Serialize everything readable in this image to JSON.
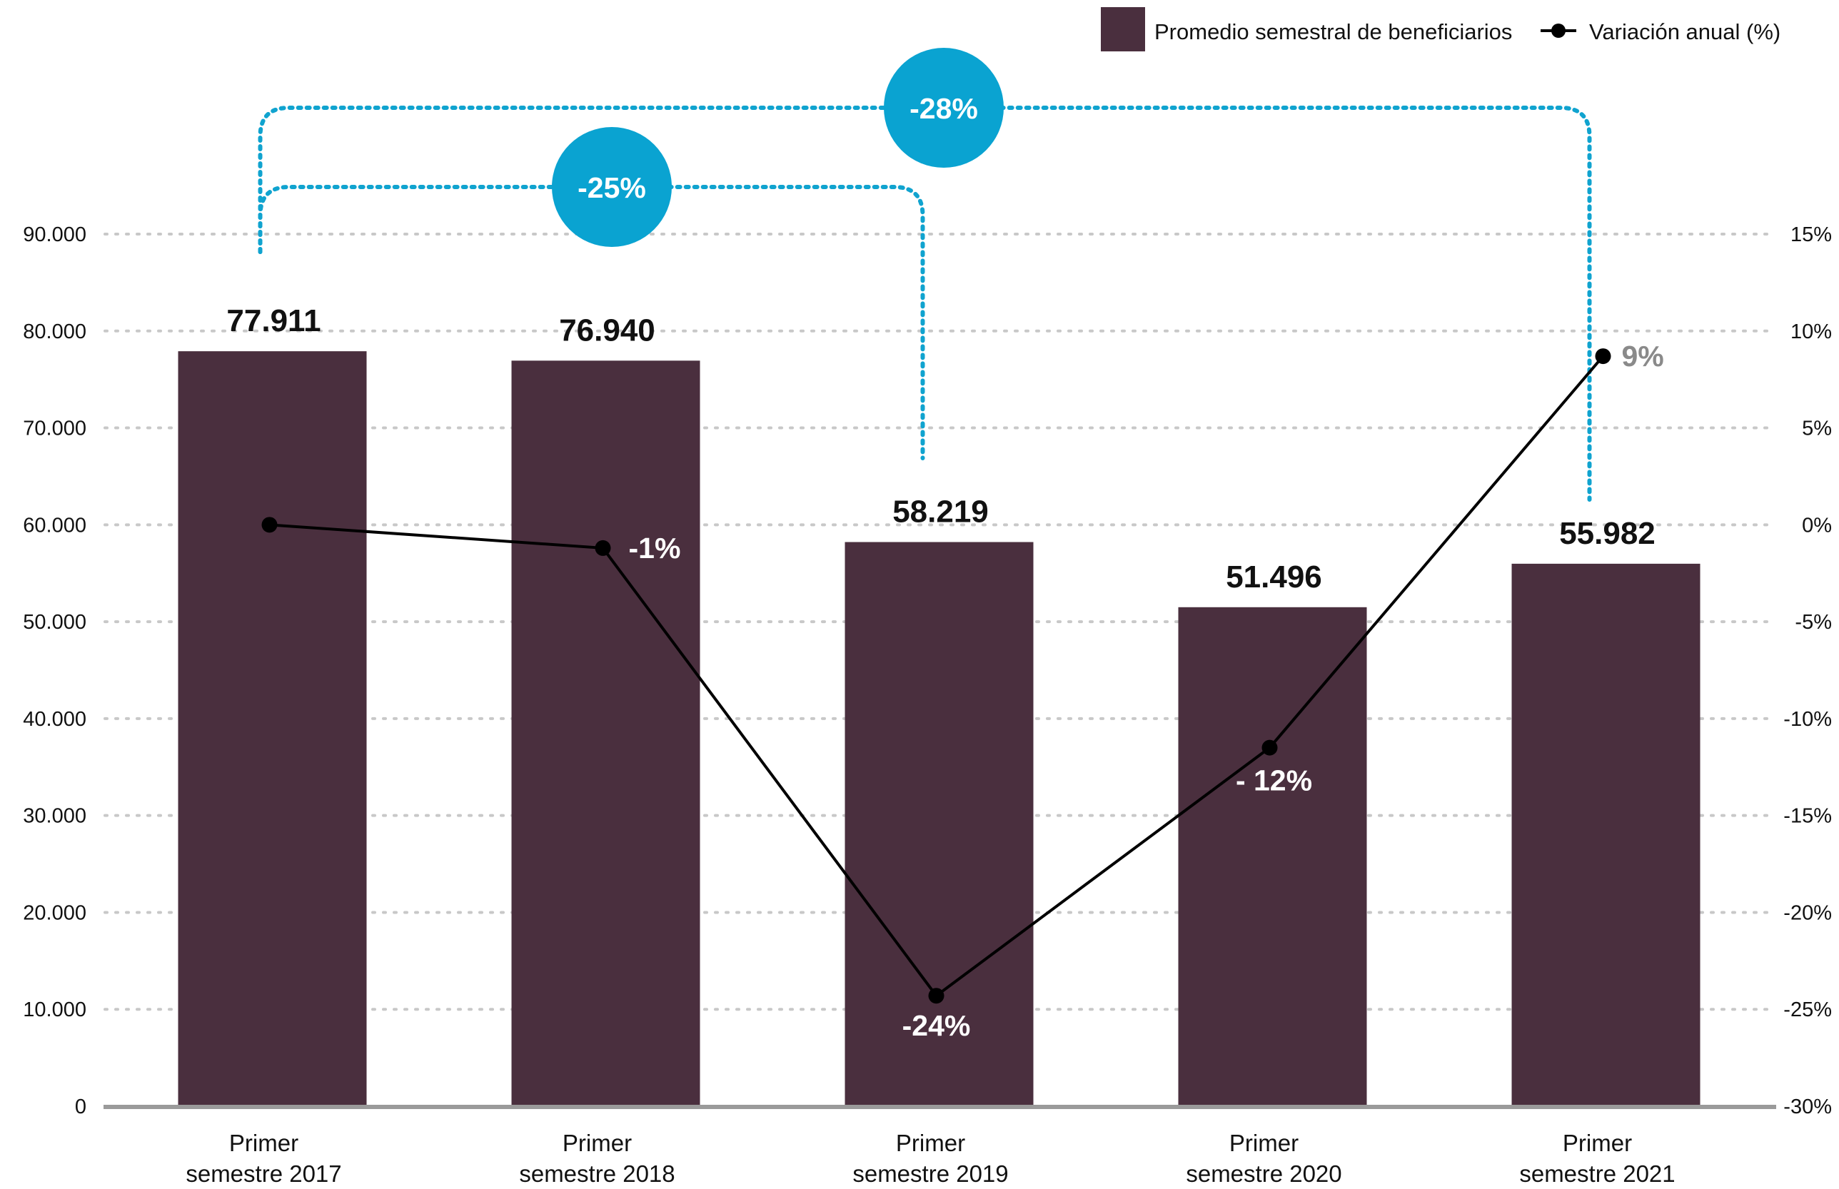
{
  "chart_data": {
    "type": "bar",
    "categories": [
      [
        "Primer",
        "semestre 2017"
      ],
      [
        "Primer",
        "semestre 2018"
      ],
      [
        "Primer",
        "semestre 2019"
      ],
      [
        "Primer",
        "semestre 2020"
      ],
      [
        "Primer",
        "semestre 2021"
      ]
    ],
    "series": [
      {
        "name": "Promedio semestral de beneficiarios",
        "type": "bar",
        "axis": "left",
        "color": "#4a2f3e",
        "values": [
          77911,
          76940,
          58219,
          51496,
          55982
        ],
        "labels": [
          "77.911",
          "76.940",
          "58.219",
          "51.496",
          "55.982"
        ]
      },
      {
        "name": "Variación anual (%)",
        "type": "line",
        "axis": "right",
        "color": "#000000",
        "values": [
          0,
          -1.2,
          -24.3,
          -11.5,
          8.7
        ],
        "labels": [
          "",
          "-1%",
          "-24%",
          "- 12%",
          "9%"
        ],
        "label_color": [
          "#ffffff",
          "#ffffff",
          "#ffffff",
          "#ffffff",
          "#8a8a8a"
        ]
      }
    ],
    "y_left": {
      "ylim": [
        0,
        90000
      ],
      "ticks": [
        0,
        10000,
        20000,
        30000,
        40000,
        50000,
        60000,
        70000,
        80000,
        90000
      ],
      "tick_labels": [
        "0",
        "10.000",
        "20.000",
        "30.000",
        "40.000",
        "50.000",
        "60.000",
        "70.000",
        "80.000",
        "90.000"
      ]
    },
    "y_right": {
      "ylim": [
        -30,
        15
      ],
      "ticks": [
        -30,
        -25,
        -20,
        -15,
        -10,
        -5,
        0,
        5,
        10,
        15
      ],
      "tick_labels": [
        "-30%",
        "-25%",
        "-20%",
        "-15%",
        "-10%",
        "-5%",
        "0%",
        "5%",
        "10%",
        "15%"
      ]
    },
    "grid": true,
    "legend_position": "top-right",
    "annotations": [
      {
        "from": 0,
        "to": 2,
        "label": "-25%",
        "color": "#0aa3d1"
      },
      {
        "from": 0,
        "to": 4,
        "label": "-28%",
        "color": "#0aa3d1"
      }
    ]
  }
}
